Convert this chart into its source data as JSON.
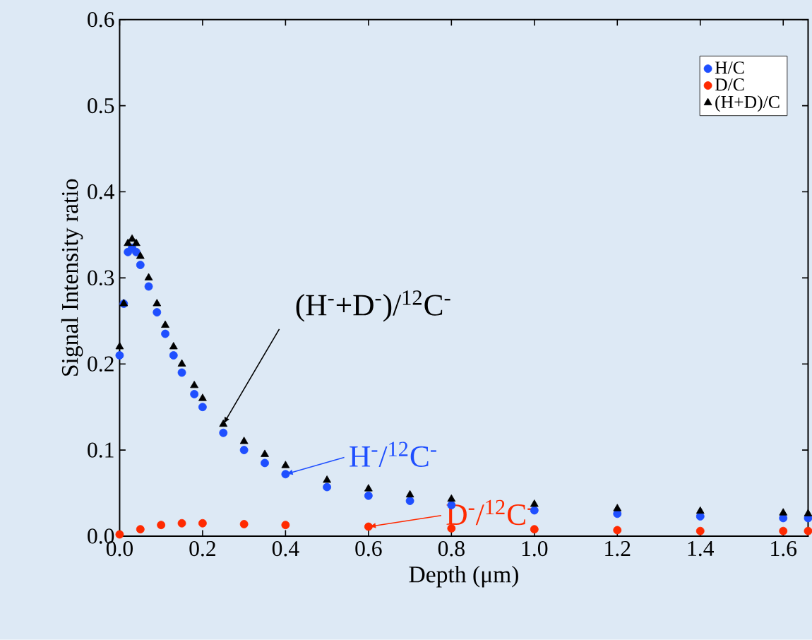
{
  "chart_data": {
    "type": "scatter",
    "xlabel": "Depth (μm)",
    "ylabel": "Signal Intensity ratio",
    "xlim": [
      0,
      1.66
    ],
    "ylim": [
      0,
      0.6
    ],
    "xticks": [
      {
        "value": 0,
        "label": "0.0"
      },
      {
        "value": 0.2,
        "label": "0.2"
      },
      {
        "value": 0.4,
        "label": "0.4"
      },
      {
        "value": 0.6,
        "label": "0.6"
      },
      {
        "value": 0.8,
        "label": "0.8"
      },
      {
        "value": 1.0,
        "label": "1.0"
      },
      {
        "value": 1.2,
        "label": "1.2"
      },
      {
        "value": 1.4,
        "label": "1.4"
      },
      {
        "value": 1.6,
        "label": "1.6"
      }
    ],
    "yticks": [
      {
        "value": 0,
        "label": "0.0"
      },
      {
        "value": 0.1,
        "label": "0.1"
      },
      {
        "value": 0.2,
        "label": "0.2"
      },
      {
        "value": 0.3,
        "label": "0.3"
      },
      {
        "value": 0.4,
        "label": "0.4"
      },
      {
        "value": 0.5,
        "label": "0.5"
      },
      {
        "value": 0.6,
        "label": "0.6"
      }
    ],
    "legend": "top right",
    "grid": false,
    "series": [
      {
        "name": "H/C",
        "color": "#1f4fff",
        "marker": "circle",
        "x": [
          0,
          0.01,
          0.02,
          0.03,
          0.04,
          0.05,
          0.07,
          0.09,
          0.11,
          0.13,
          0.15,
          0.18,
          0.2,
          0.25,
          0.3,
          0.35,
          0.4,
          0.5,
          0.6,
          0.7,
          0.8,
          1.0,
          1.2,
          1.4,
          1.6,
          1.66
        ],
        "values": [
          0.21,
          0.27,
          0.33,
          0.335,
          0.33,
          0.315,
          0.29,
          0.26,
          0.235,
          0.21,
          0.19,
          0.165,
          0.15,
          0.12,
          0.1,
          0.085,
          0.072,
          0.057,
          0.047,
          0.041,
          0.036,
          0.03,
          0.026,
          0.023,
          0.021,
          0.021
        ]
      },
      {
        "name": "D/C",
        "color": "#ff2a00",
        "marker": "circle",
        "x": [
          0,
          0.05,
          0.1,
          0.15,
          0.2,
          0.3,
          0.4,
          0.6,
          0.8,
          1.0,
          1.2,
          1.4,
          1.6,
          1.66
        ],
        "values": [
          0.002,
          0.008,
          0.013,
          0.015,
          0.015,
          0.014,
          0.013,
          0.011,
          0.009,
          0.008,
          0.007,
          0.006,
          0.006,
          0.006
        ]
      },
      {
        "name": "(H+D)/C",
        "color": "#000000",
        "marker": "triangle",
        "x": [
          0,
          0.01,
          0.02,
          0.03,
          0.04,
          0.05,
          0.07,
          0.09,
          0.11,
          0.13,
          0.15,
          0.18,
          0.2,
          0.25,
          0.3,
          0.35,
          0.4,
          0.5,
          0.6,
          0.7,
          0.8,
          1.0,
          1.2,
          1.4,
          1.6,
          1.66
        ],
        "values": [
          0.22,
          0.27,
          0.34,
          0.345,
          0.34,
          0.325,
          0.3,
          0.27,
          0.245,
          0.22,
          0.2,
          0.175,
          0.16,
          0.13,
          0.11,
          0.095,
          0.082,
          0.065,
          0.055,
          0.048,
          0.043,
          0.037,
          0.032,
          0.029,
          0.027,
          0.026
        ]
      }
    ],
    "annotations": [
      {
        "text": "H$^{-}$/$^{12}$C$^{-}$",
        "x": 0.4,
        "y": 0.072
      },
      {
        "text": "D$^{-}$/$^{12}$C$^{-}$",
        "x": 0.6,
        "y": 0.011
      },
      {
        "text": "(H$^{-}$+D$^{-}$)/$^{12}$C$^{-}$",
        "x": 0.25,
        "y": 0.13
      }
    ]
  }
}
